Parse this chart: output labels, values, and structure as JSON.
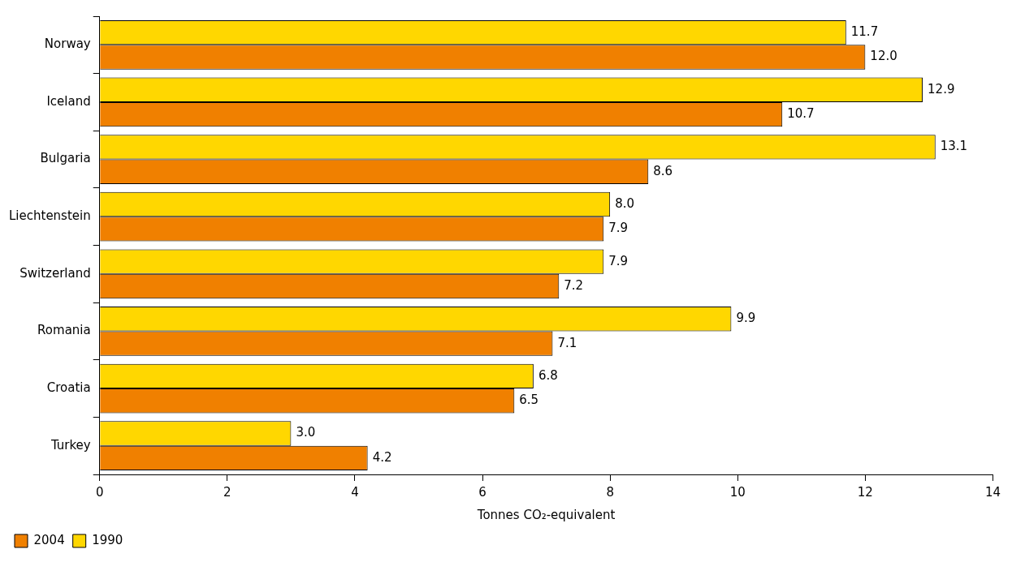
{
  "chart_data": {
    "type": "bar",
    "orientation": "horizontal",
    "xlabel": "Tonnes CO₂-equivalent",
    "categories": [
      "Norway",
      "Iceland",
      "Bulgaria",
      "Liechtenstein",
      "Switzerland",
      "Romania",
      "Croatia",
      "Turkey"
    ],
    "series": [
      {
        "name": "1990",
        "color": "#ffd700",
        "values": [
          11.7,
          12.9,
          13.1,
          8.0,
          7.9,
          9.9,
          6.8,
          3.0
        ],
        "value_labels": [
          "11.7",
          "12.9",
          "13.1",
          "8.0",
          "7.9",
          "9.9",
          "6.8",
          "3.0"
        ]
      },
      {
        "name": "2004",
        "color": "#f08000",
        "values": [
          12.0,
          10.7,
          8.6,
          7.9,
          7.2,
          7.1,
          6.5,
          4.2
        ],
        "value_labels": [
          "12.0",
          "10.7",
          "8.6",
          "7.9",
          "7.2",
          "7.1",
          "6.5",
          "4.2"
        ]
      }
    ],
    "xlim": [
      0,
      14
    ],
    "xticks": [
      0,
      2,
      4,
      6,
      8,
      10,
      12,
      14
    ],
    "grid": false,
    "legend": "bottom left"
  }
}
